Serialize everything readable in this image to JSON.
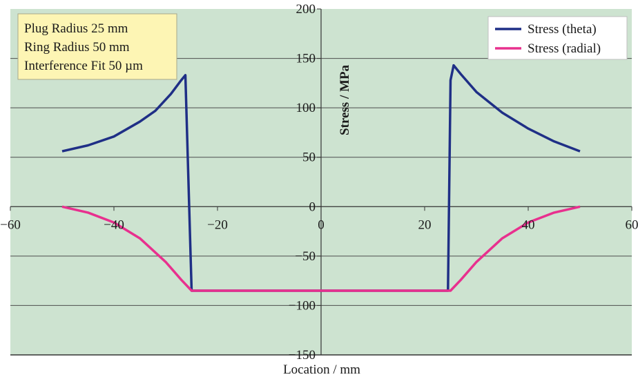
{
  "chart_data": {
    "type": "line",
    "xlabel": "Location / mm",
    "ylabel": "Stress / MPa",
    "xlim": [
      -60,
      60
    ],
    "ylim": [
      -150,
      200
    ],
    "xticks": [
      -60,
      -40,
      -20,
      0,
      20,
      40,
      60
    ],
    "yticks": [
      -150,
      -100,
      -50,
      0,
      50,
      100,
      150,
      200
    ],
    "xtick_labels": [
      "−60",
      "−40",
      "−20",
      "0",
      "20",
      "40",
      "60"
    ],
    "ytick_labels": [
      "−150",
      "−100",
      "−50",
      "0",
      "50",
      "100",
      "150",
      "200"
    ],
    "grid": "horizontal",
    "background": "#cde3d0",
    "legend_position": "top-right",
    "annotation_lines": [
      "Plug Radius 25 mm",
      "Ring Radius 50 mm",
      "Interference Fit 50 µm"
    ],
    "series": [
      {
        "name": "Stress (theta)",
        "color": "#1f2f86",
        "x": [
          -50,
          -45,
          -40,
          -35,
          -32,
          -29,
          -27,
          -26.2,
          -25,
          24.5,
          25,
          25.6,
          27,
          30,
          35,
          40,
          45,
          50
        ],
        "y": [
          56,
          62,
          71,
          86,
          97,
          114,
          128,
          133,
          -85,
          -85,
          128,
          143,
          134,
          116,
          95,
          79,
          66,
          56
        ]
      },
      {
        "name": "Stress (radial)",
        "color": "#e8308e",
        "x": [
          -50,
          -45,
          -40,
          -35,
          -30,
          -27,
          -25,
          25,
          27,
          30,
          35,
          40,
          45,
          50
        ],
        "y": [
          0,
          -6,
          -16,
          -32,
          -56,
          -74,
          -85,
          -85,
          -74,
          -56,
          -32,
          -16,
          -6,
          0
        ]
      }
    ]
  }
}
